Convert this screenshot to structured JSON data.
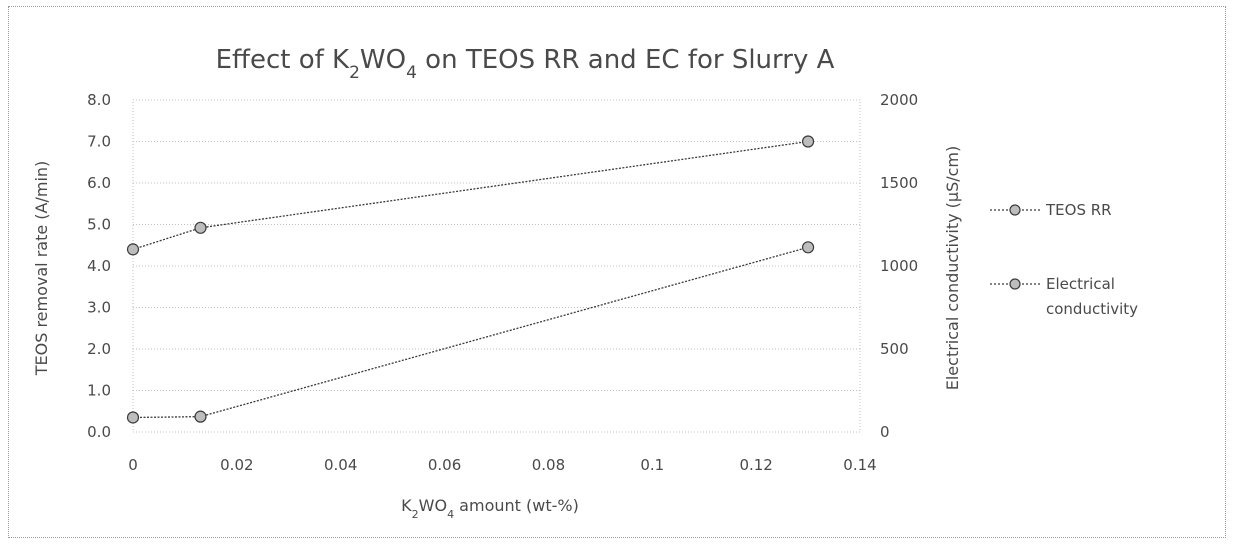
{
  "chart_data": {
    "type": "line",
    "title_parts": {
      "pre": "Effect of K",
      "sub1": "2",
      "mid": "WO",
      "sub2": "4",
      "post": " on TEOS RR and EC for Slurry A"
    },
    "xlabel_parts": {
      "pre": "K",
      "sub1": "2",
      "mid": "WO",
      "sub2": "4",
      "post": " amount (wt-%)"
    },
    "ylabel_left": "TEOS removal rate (A/min)",
    "ylabel_right": "Electrical conductivity (µS/cm)",
    "xlim": [
      0,
      0.14
    ],
    "ylim_left": [
      0,
      8
    ],
    "ylim_right": [
      0,
      2000
    ],
    "x_ticks": [
      "0",
      "0.02",
      "0.04",
      "0.06",
      "0.08",
      "0.1",
      "0.12",
      "0.14"
    ],
    "y_left_ticks": [
      "0.0",
      "1.0",
      "2.0",
      "3.0",
      "4.0",
      "5.0",
      "6.0",
      "7.0",
      "8.0"
    ],
    "y_right_ticks": [
      "0",
      "500",
      "1000",
      "1500",
      "2000"
    ],
    "grid": "horizontal",
    "legend_position": "right",
    "series": [
      {
        "name": "TEOS RR",
        "axis": "left",
        "x": [
          0,
          0.013,
          0.13
        ],
        "y": [
          0.35,
          0.37,
          4.45
        ]
      },
      {
        "name_lines": [
          "Electrical",
          "conductivity"
        ],
        "axis": "right",
        "x": [
          0,
          0.013,
          0.13
        ],
        "y": [
          1100,
          1230,
          1750
        ]
      }
    ],
    "colors": {
      "line": "#3a3a3a",
      "marker_fill": "#bdbdbd",
      "grid": "#bfbfbf",
      "text": "#4a4a4a"
    }
  }
}
